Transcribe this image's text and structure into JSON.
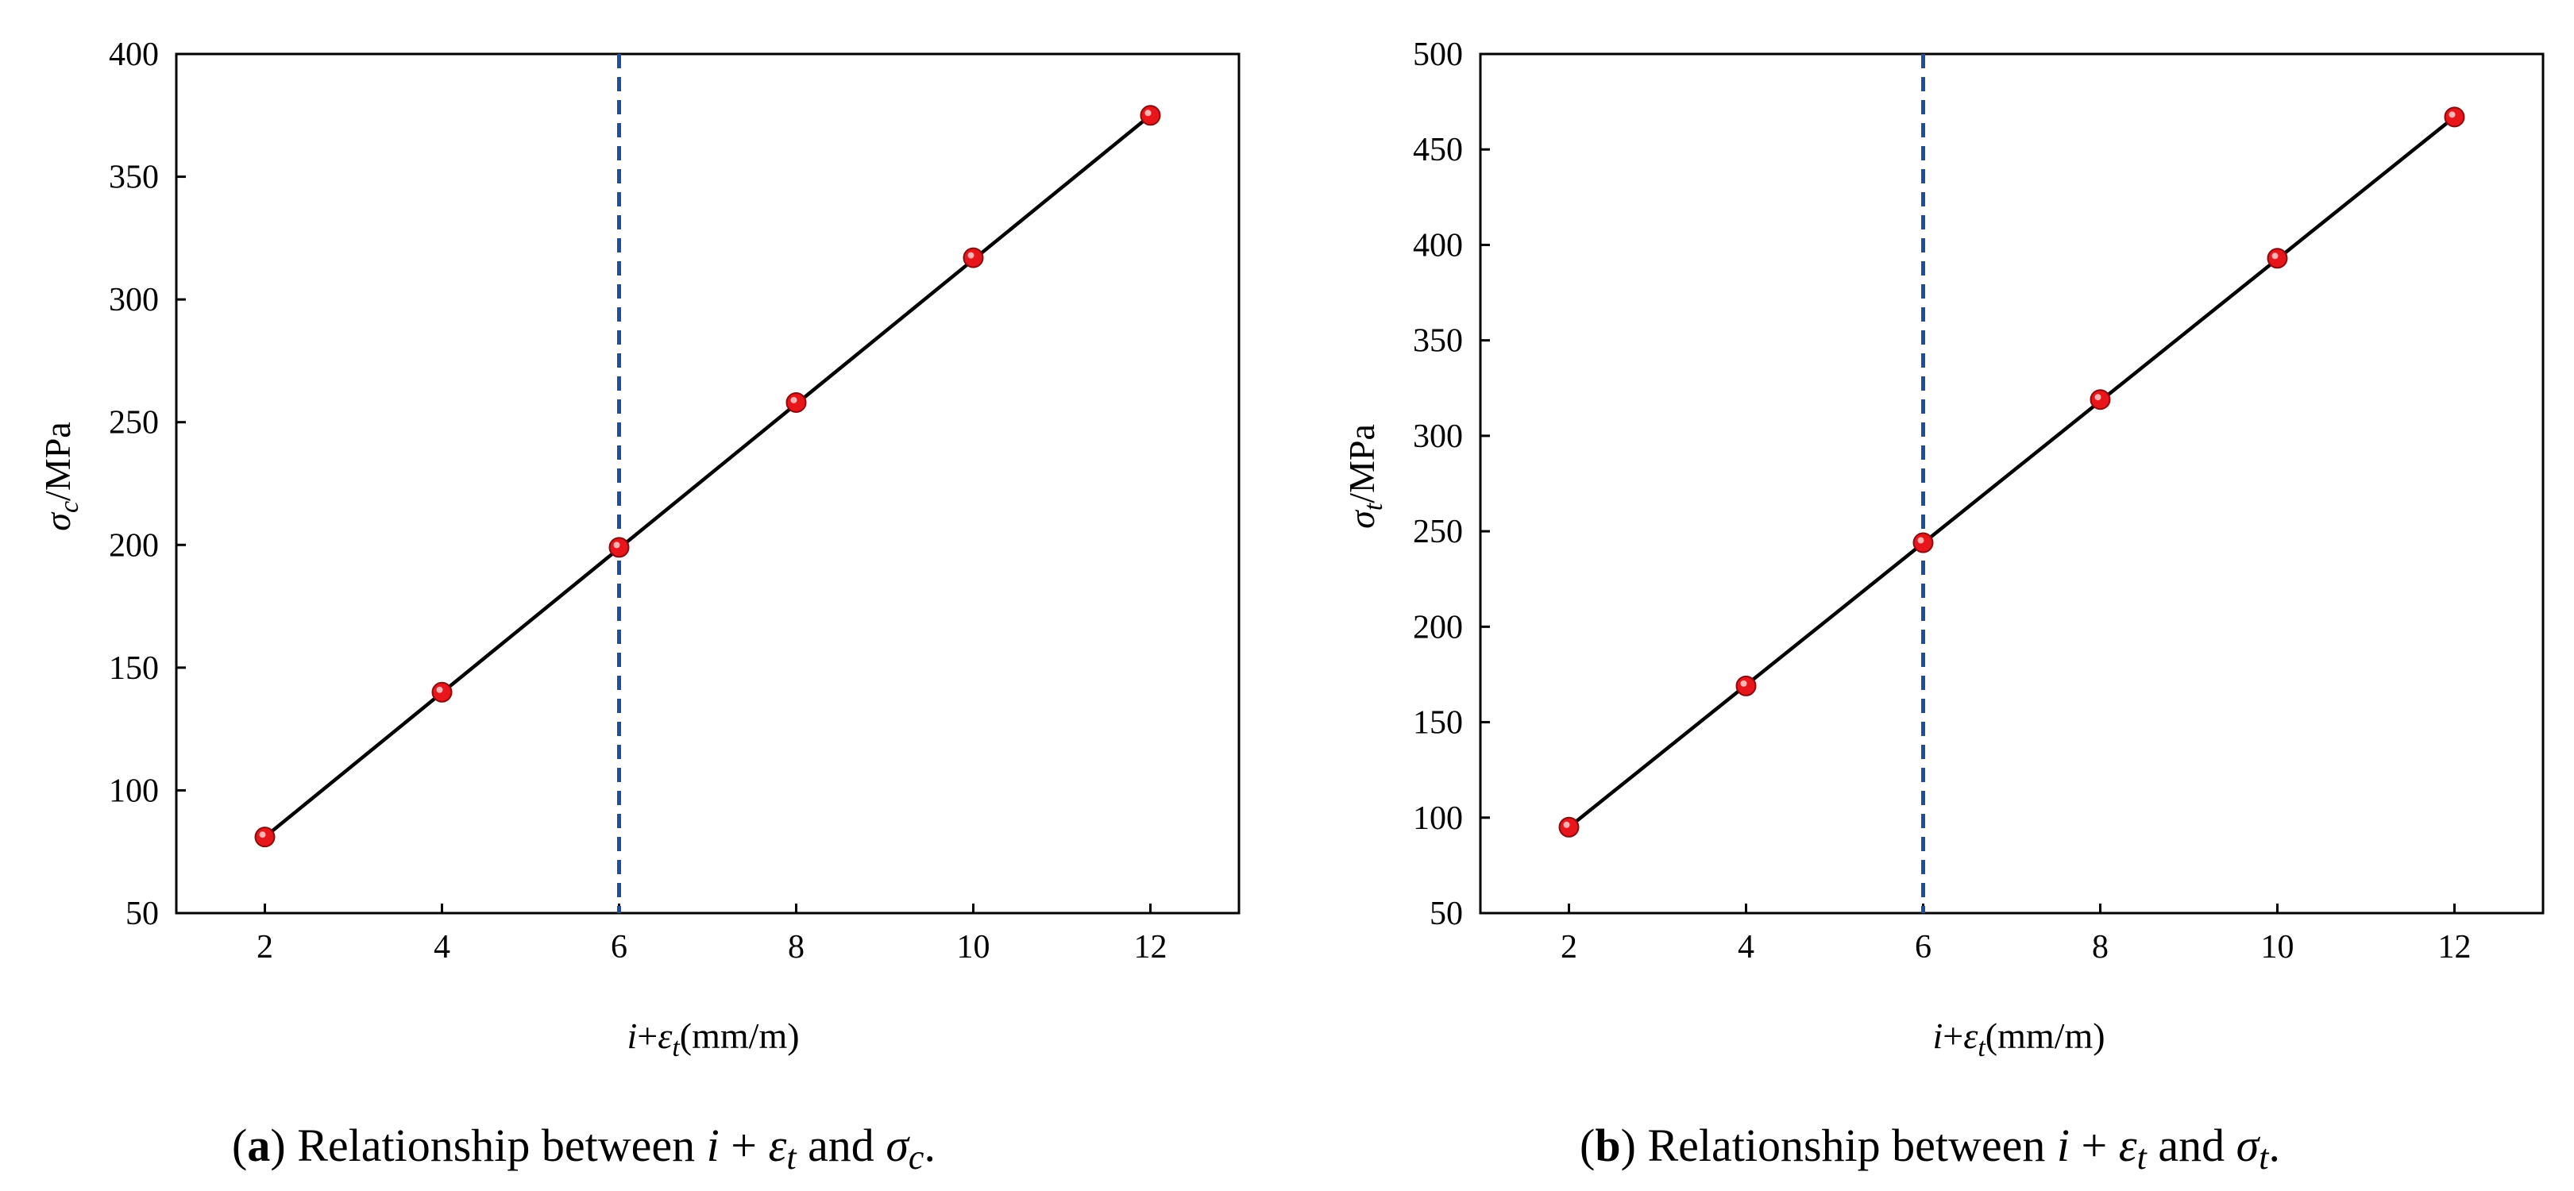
{
  "figure": {
    "panels": [
      {
        "caption": {
          "tag": "a",
          "text_before": " Relationship between ",
          "i": "i",
          "plus": " + ",
          "eps": "ε",
          "eps_sub": "t",
          "and": " and ",
          "sigma": "σ",
          "sigma_sub": "c",
          "end": "."
        },
        "ylabel": {
          "sigma": "σ",
          "sub": "c",
          "unit": "/MPa"
        },
        "xlabel": {
          "i": "i",
          "plus": "+",
          "eps": "ε",
          "sub": "t",
          "unit": "(mm/m)"
        }
      },
      {
        "caption": {
          "tag": "b",
          "text_before": " Relationship between ",
          "i": "i",
          "plus": " + ",
          "eps": "ε",
          "eps_sub": "t",
          "and": " and ",
          "sigma": "σ",
          "sigma_sub": "t",
          "end": "."
        },
        "ylabel": {
          "sigma": "σ",
          "sub": "t",
          "unit": "/MPa"
        },
        "xlabel": {
          "i": "i",
          "plus": "+",
          "eps": "ε",
          "sub": "t",
          "unit": "(mm/m)"
        }
      }
    ]
  },
  "chart_data": [
    {
      "type": "scatter",
      "x": [
        2,
        4,
        6,
        8,
        10,
        12
      ],
      "y": [
        81,
        140,
        199,
        258,
        317,
        375
      ],
      "xlim": [
        1,
        13
      ],
      "ylim": [
        50,
        400
      ],
      "xticks": [
        2,
        4,
        6,
        8,
        10,
        12
      ],
      "yticks": [
        50,
        100,
        150,
        200,
        250,
        300,
        350,
        400
      ],
      "fit_line": {
        "x": [
          2,
          12
        ],
        "y": [
          81,
          375
        ]
      },
      "vertical_reference_line": 6,
      "grid": false,
      "marker_color": "#e8161b",
      "line_color": "#000000",
      "ref_line_color": "#1f4e9c"
    },
    {
      "type": "scatter",
      "x": [
        2,
        4,
        6,
        8,
        10,
        12
      ],
      "y": [
        95,
        169,
        244,
        319,
        393,
        467
      ],
      "xlim": [
        1,
        13
      ],
      "ylim": [
        50,
        500
      ],
      "xticks": [
        2,
        4,
        6,
        8,
        10,
        12
      ],
      "yticks": [
        50,
        100,
        150,
        200,
        250,
        300,
        350,
        400,
        450,
        500
      ],
      "fit_line": {
        "x": [
          2,
          12
        ],
        "y": [
          95,
          467
        ]
      },
      "vertical_reference_line": 6,
      "grid": false,
      "marker_color": "#e8161b",
      "line_color": "#000000",
      "ref_line_color": "#1f4e9c"
    }
  ]
}
